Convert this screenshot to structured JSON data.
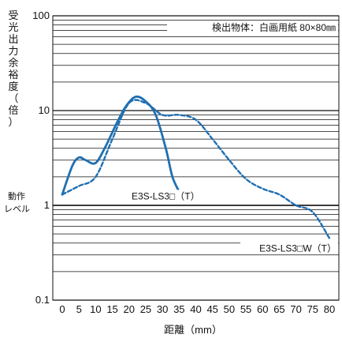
{
  "chart_data": {
    "type": "line",
    "ylabel": "受光出力余裕度（倍）",
    "xlabel": "距離（mm）",
    "yscale": "log",
    "ylim": [
      0.1,
      100
    ],
    "xlim": [
      0,
      80
    ],
    "x_ticks": [
      0,
      5,
      10,
      15,
      20,
      25,
      30,
      35,
      40,
      45,
      50,
      55,
      60,
      65,
      70,
      75,
      80
    ],
    "y_ticks": [
      0.1,
      1,
      10,
      100
    ],
    "y_tick_labels": [
      "0.1",
      "1",
      "10",
      "100"
    ],
    "grid": "horizontal",
    "threshold_label": [
      "動作",
      "レベル"
    ],
    "threshold_value": 1,
    "annotation": "検出物体：白画用紙 80×80㎜",
    "series": [
      {
        "name": "E3S-LS3□（T）",
        "style": "solid",
        "color": "#1f6fb2",
        "x": [
          0,
          3,
          5,
          7,
          10,
          13,
          16,
          19,
          22,
          25,
          28,
          31,
          33,
          35
        ],
        "y": [
          1.3,
          2.6,
          3.2,
          3.0,
          2.8,
          4.2,
          7.0,
          11.0,
          14.0,
          12.5,
          9.0,
          4.0,
          2.0,
          1.4
        ]
      },
      {
        "name": "E3S-LS3□W（T）",
        "style": "dashed",
        "color": "#1f6fb2",
        "x": [
          0,
          5,
          10,
          15,
          20,
          25,
          30,
          35,
          40,
          45,
          50,
          55,
          60,
          65,
          70,
          75,
          80
        ],
        "y": [
          1.3,
          1.6,
          2.0,
          5.0,
          12.0,
          12.0,
          9.0,
          9.0,
          8.0,
          5.0,
          3.0,
          1.9,
          1.5,
          1.3,
          1.0,
          0.85,
          0.45
        ]
      }
    ]
  }
}
